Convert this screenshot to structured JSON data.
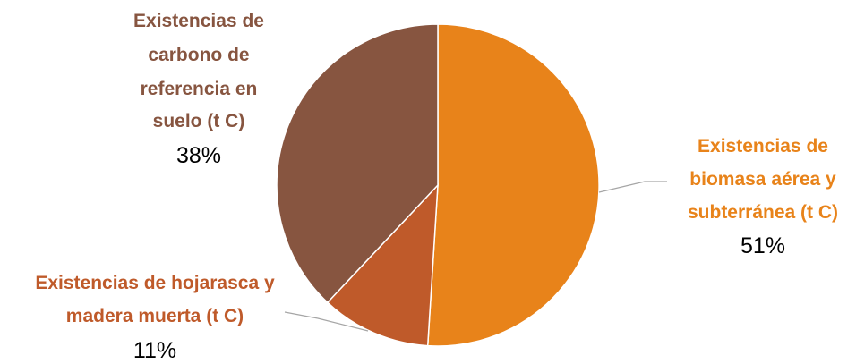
{
  "chart_data": {
    "type": "pie",
    "title": "",
    "slices": [
      {
        "label_lines": [
          "Existencias de",
          "biomasa aérea y",
          "subterránea (t C)"
        ],
        "value": 51,
        "percent_label": "51%",
        "color": "#E8831A"
      },
      {
        "label_lines": [
          "Existencias de hojarasca y",
          "madera muerta (t C)"
        ],
        "value": 11,
        "percent_label": "11%",
        "color": "#BF5A2A"
      },
      {
        "label_lines": [
          "Existencias de",
          "carbono de",
          "referencia en",
          "suelo (t C)"
        ],
        "value": 38,
        "percent_label": "38%",
        "color": "#875540"
      }
    ],
    "label_colors": [
      "#E8831A",
      "#BF5A2A",
      "#875540"
    ],
    "legend": "none"
  }
}
